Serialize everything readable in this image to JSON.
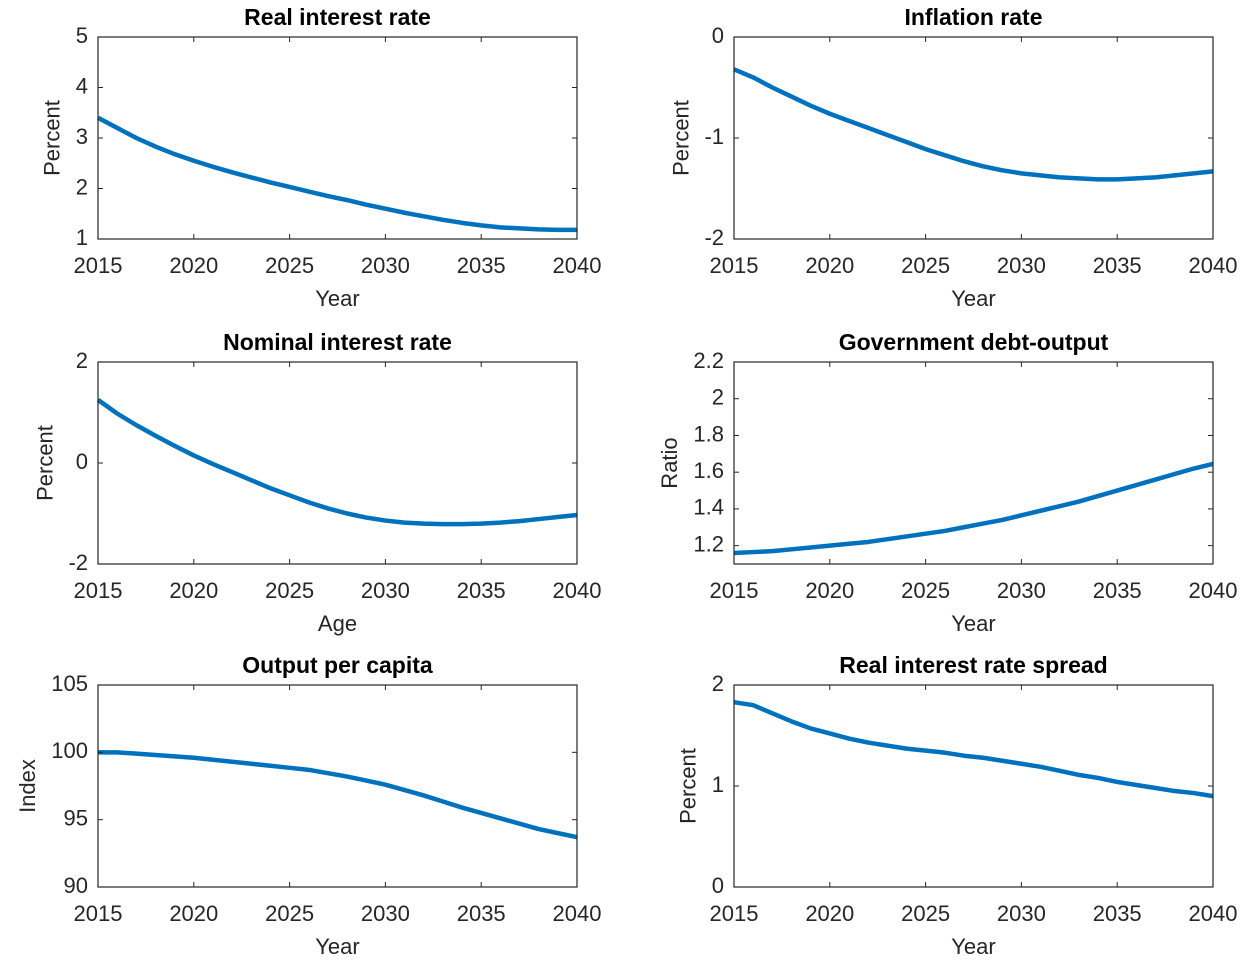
{
  "chart_data": [
    {
      "type": "line",
      "title": "Real interest rate",
      "xlabel": "Year",
      "ylabel": "Percent",
      "x": [
        2015,
        2016,
        2017,
        2018,
        2019,
        2020,
        2021,
        2022,
        2023,
        2024,
        2025,
        2026,
        2027,
        2028,
        2029,
        2030,
        2031,
        2032,
        2033,
        2034,
        2035,
        2036,
        2037,
        2038,
        2039,
        2040
      ],
      "series": [
        {
          "color": "#0072bd",
          "values": [
            3.4,
            3.2,
            3.0,
            2.83,
            2.68,
            2.55,
            2.43,
            2.32,
            2.22,
            2.12,
            2.03,
            1.94,
            1.85,
            1.77,
            1.68,
            1.6,
            1.52,
            1.45,
            1.38,
            1.32,
            1.27,
            1.23,
            1.21,
            1.19,
            1.18,
            1.18
          ]
        }
      ],
      "xlim": [
        2015,
        2040
      ],
      "xticks": [
        2015,
        2020,
        2025,
        2030,
        2035,
        2040
      ],
      "ylim": [
        1,
        5
      ],
      "yticks": [
        1,
        2,
        3,
        4,
        5
      ]
    },
    {
      "type": "line",
      "title": "Inflation rate",
      "xlabel": "Year",
      "ylabel": "Percent",
      "x": [
        2015,
        2016,
        2017,
        2018,
        2019,
        2020,
        2021,
        2022,
        2023,
        2024,
        2025,
        2026,
        2027,
        2028,
        2029,
        2030,
        2031,
        2032,
        2033,
        2034,
        2035,
        2036,
        2037,
        2038,
        2039,
        2040
      ],
      "series": [
        {
          "color": "#0072bd",
          "values": [
            -0.32,
            -0.4,
            -0.5,
            -0.59,
            -0.68,
            -0.76,
            -0.83,
            -0.9,
            -0.97,
            -1.04,
            -1.11,
            -1.17,
            -1.23,
            -1.28,
            -1.32,
            -1.35,
            -1.37,
            -1.39,
            -1.4,
            -1.41,
            -1.41,
            -1.4,
            -1.39,
            -1.37,
            -1.35,
            -1.33
          ]
        }
      ],
      "xlim": [
        2015,
        2040
      ],
      "xticks": [
        2015,
        2020,
        2025,
        2030,
        2035,
        2040
      ],
      "ylim": [
        -2,
        0
      ],
      "yticks": [
        -2,
        -1,
        0
      ]
    },
    {
      "type": "line",
      "title": "Nominal interest rate",
      "xlabel": "Age",
      "ylabel": "Percent",
      "x": [
        2015,
        2016,
        2017,
        2018,
        2019,
        2020,
        2021,
        2022,
        2023,
        2024,
        2025,
        2026,
        2027,
        2028,
        2029,
        2030,
        2031,
        2032,
        2033,
        2034,
        2035,
        2036,
        2037,
        2038,
        2039,
        2040
      ],
      "series": [
        {
          "color": "#0072bd",
          "values": [
            1.25,
            0.98,
            0.75,
            0.54,
            0.34,
            0.15,
            -0.02,
            -0.18,
            -0.34,
            -0.5,
            -0.64,
            -0.78,
            -0.9,
            -1.0,
            -1.08,
            -1.14,
            -1.18,
            -1.2,
            -1.21,
            -1.21,
            -1.2,
            -1.18,
            -1.15,
            -1.11,
            -1.07,
            -1.03
          ]
        }
      ],
      "xlim": [
        2015,
        2040
      ],
      "xticks": [
        2015,
        2020,
        2025,
        2030,
        2035,
        2040
      ],
      "ylim": [
        -2,
        2
      ],
      "yticks": [
        -2,
        0,
        2
      ]
    },
    {
      "type": "line",
      "title": "Government debt-output",
      "xlabel": "Year",
      "ylabel": "Ratio",
      "x": [
        2015,
        2016,
        2017,
        2018,
        2019,
        2020,
        2021,
        2022,
        2023,
        2024,
        2025,
        2026,
        2027,
        2028,
        2029,
        2030,
        2031,
        2032,
        2033,
        2034,
        2035,
        2036,
        2037,
        2038,
        2039,
        2040
      ],
      "series": [
        {
          "color": "#0072bd",
          "values": [
            1.16,
            1.165,
            1.17,
            1.18,
            1.19,
            1.2,
            1.21,
            1.22,
            1.235,
            1.25,
            1.265,
            1.28,
            1.3,
            1.32,
            1.34,
            1.365,
            1.39,
            1.415,
            1.44,
            1.47,
            1.5,
            1.53,
            1.56,
            1.59,
            1.62,
            1.645
          ]
        }
      ],
      "xlim": [
        2015,
        2040
      ],
      "xticks": [
        2015,
        2020,
        2025,
        2030,
        2035,
        2040
      ],
      "ylim": [
        1.1,
        2.2
      ],
      "yticks": [
        1.2,
        1.4,
        1.6,
        1.8,
        2,
        2.2
      ]
    },
    {
      "type": "line",
      "title": "Output per capita",
      "xlabel": "Year",
      "ylabel": "Index",
      "x": [
        2015,
        2016,
        2017,
        2018,
        2019,
        2020,
        2021,
        2022,
        2023,
        2024,
        2025,
        2026,
        2027,
        2028,
        2029,
        2030,
        2031,
        2032,
        2033,
        2034,
        2035,
        2036,
        2037,
        2038,
        2039,
        2040
      ],
      "series": [
        {
          "color": "#0072bd",
          "values": [
            100.0,
            100.0,
            99.9,
            99.8,
            99.7,
            99.6,
            99.45,
            99.3,
            99.15,
            99.0,
            98.85,
            98.7,
            98.45,
            98.2,
            97.9,
            97.6,
            97.2,
            96.8,
            96.35,
            95.9,
            95.5,
            95.1,
            94.7,
            94.3,
            94.0,
            93.7
          ]
        }
      ],
      "xlim": [
        2015,
        2040
      ],
      "xticks": [
        2015,
        2020,
        2025,
        2030,
        2035,
        2040
      ],
      "ylim": [
        90,
        105
      ],
      "yticks": [
        90,
        95,
        100,
        105
      ]
    },
    {
      "type": "line",
      "title": "Real interest rate spread",
      "xlabel": "Year",
      "ylabel": "Percent",
      "x": [
        2015,
        2016,
        2017,
        2018,
        2019,
        2020,
        2021,
        2022,
        2023,
        2024,
        2025,
        2026,
        2027,
        2028,
        2029,
        2030,
        2031,
        2032,
        2033,
        2034,
        2035,
        2036,
        2037,
        2038,
        2039,
        2040
      ],
      "series": [
        {
          "color": "#0072bd",
          "values": [
            1.83,
            1.8,
            1.72,
            1.64,
            1.57,
            1.52,
            1.47,
            1.43,
            1.4,
            1.37,
            1.35,
            1.33,
            1.3,
            1.28,
            1.25,
            1.22,
            1.19,
            1.15,
            1.11,
            1.08,
            1.04,
            1.01,
            0.98,
            0.95,
            0.93,
            0.9
          ]
        }
      ],
      "xlim": [
        2015,
        2040
      ],
      "xticks": [
        2015,
        2020,
        2025,
        2030,
        2035,
        2040
      ],
      "ylim": [
        0,
        2
      ],
      "yticks": [
        0,
        1,
        2
      ]
    }
  ]
}
